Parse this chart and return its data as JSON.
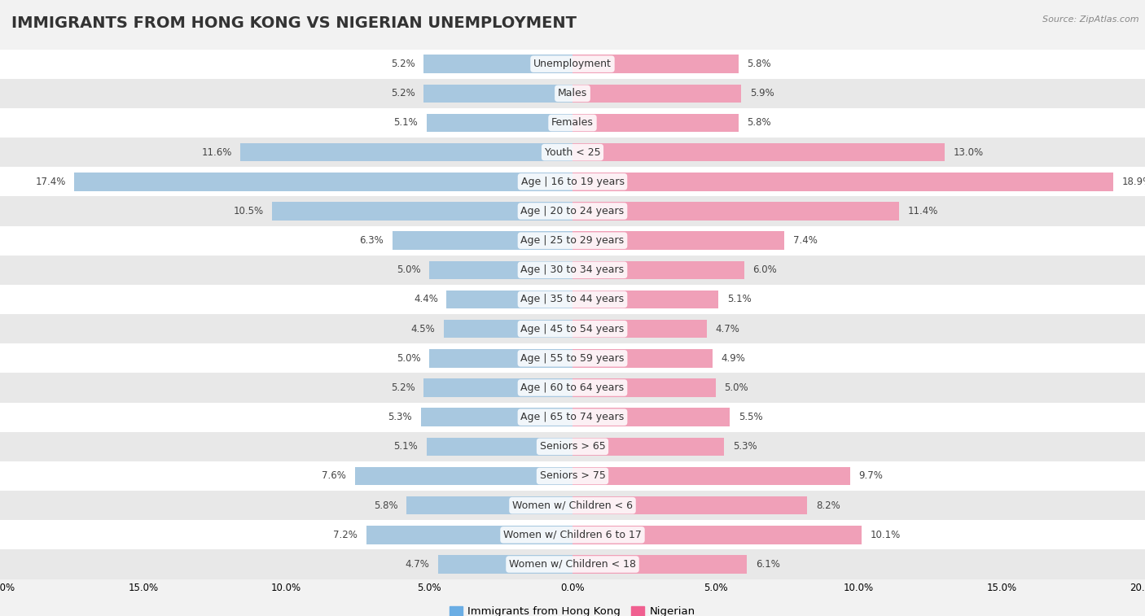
{
  "title": "IMMIGRANTS FROM HONG KONG VS NIGERIAN UNEMPLOYMENT",
  "source": "Source: ZipAtlas.com",
  "categories": [
    "Unemployment",
    "Males",
    "Females",
    "Youth < 25",
    "Age | 16 to 19 years",
    "Age | 20 to 24 years",
    "Age | 25 to 29 years",
    "Age | 30 to 34 years",
    "Age | 35 to 44 years",
    "Age | 45 to 54 years",
    "Age | 55 to 59 years",
    "Age | 60 to 64 years",
    "Age | 65 to 74 years",
    "Seniors > 65",
    "Seniors > 75",
    "Women w/ Children < 6",
    "Women w/ Children 6 to 17",
    "Women w/ Children < 18"
  ],
  "hong_kong": [
    5.2,
    5.2,
    5.1,
    11.6,
    17.4,
    10.5,
    6.3,
    5.0,
    4.4,
    4.5,
    5.0,
    5.2,
    5.3,
    5.1,
    7.6,
    5.8,
    7.2,
    4.7
  ],
  "nigerian": [
    5.8,
    5.9,
    5.8,
    13.0,
    18.9,
    11.4,
    7.4,
    6.0,
    5.1,
    4.7,
    4.9,
    5.0,
    5.5,
    5.3,
    9.7,
    8.2,
    10.1,
    6.1
  ],
  "hk_color": "#a8c8e0",
  "ng_color": "#f0a0b8",
  "hk_legend_color": "#6aade4",
  "ng_legend_color": "#f06090",
  "bg_color": "#f2f2f2",
  "row_color_odd": "#ffffff",
  "row_color_even": "#e8e8e8",
  "x_max": 20.0,
  "title_fontsize": 14,
  "label_fontsize": 9.0,
  "value_fontsize": 8.5,
  "axis_fontsize": 8.5,
  "legend_fontsize": 9.5
}
